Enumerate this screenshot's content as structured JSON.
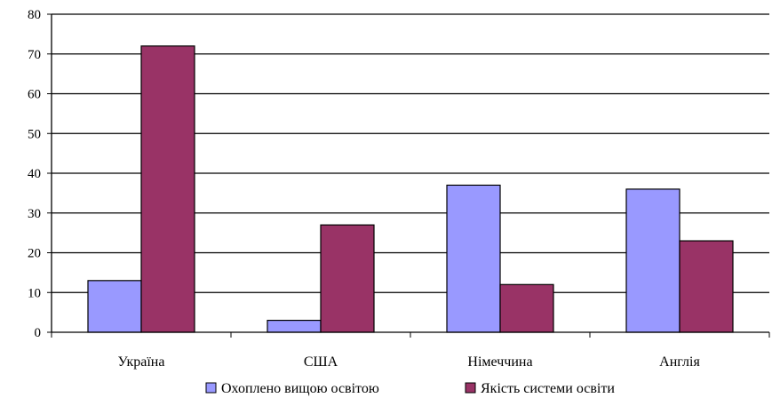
{
  "chart_data": {
    "type": "bar",
    "categories": [
      "Україна",
      "США",
      "Німеччина",
      "Англія"
    ],
    "series": [
      {
        "name": "Охоплено вищою освітою",
        "color": "#9999ff",
        "values": [
          13,
          3,
          37,
          36
        ]
      },
      {
        "name": "Якість системи освіти",
        "color": "#993366",
        "values": [
          72,
          27,
          12,
          23
        ]
      }
    ],
    "y_ticks": [
      "0",
      "10",
      "20",
      "30",
      "40",
      "50",
      "60",
      "70",
      "80"
    ],
    "ylim": [
      0,
      80
    ],
    "grid": true,
    "legend_position": "bottom"
  }
}
